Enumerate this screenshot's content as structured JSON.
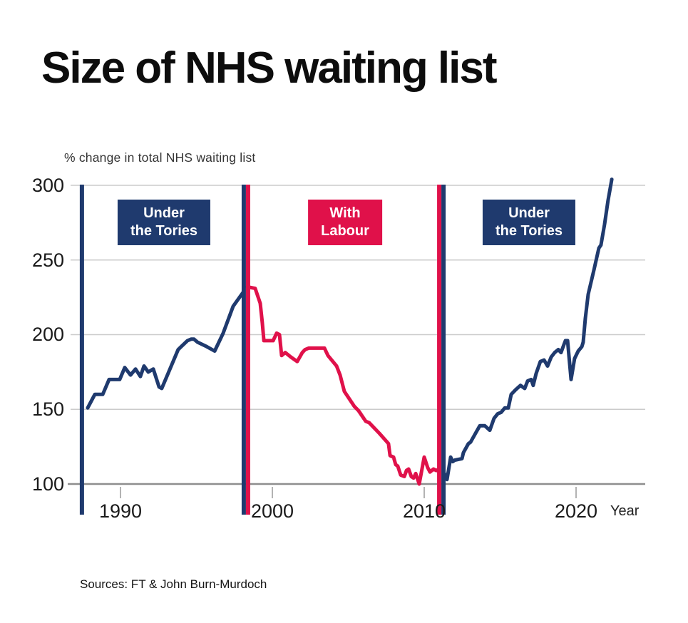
{
  "footer": {
    "source": "Sources: FT & John Burn-Murdoch"
  },
  "colors": {
    "tory_navy": "#1f3a6e",
    "labour_red": "#e0114a",
    "grid": "#cbcbcb",
    "axis": "#8e8e8e"
  },
  "chart_data": {
    "type": "line",
    "title": "Size of NHS waiting list",
    "subtitle": "% change in total NHS waiting list",
    "xlabel": "Year",
    "ylabel": "% change in total NHS waiting list",
    "x_ticks": [
      1990,
      2000,
      2010,
      2020
    ],
    "y_ticks": [
      100,
      150,
      200,
      250,
      300
    ],
    "xlim": [
      1987.4,
      2024.5
    ],
    "ylim": [
      97,
      305
    ],
    "grid": "horizontal",
    "legend_position": "none",
    "markers": [
      {
        "type": "vline",
        "x": 1987.46,
        "color": "#1f3a6e"
      },
      {
        "type": "vline-pair",
        "x": 1998.26,
        "left_color": "#1f3a6e",
        "right_color": "#e0114a"
      },
      {
        "type": "vline-pair",
        "x": 2011.13,
        "left_color": "#e0114a",
        "right_color": "#1f3a6e"
      }
    ],
    "annotations": [
      {
        "lines": [
          "Under",
          "the Tories"
        ],
        "color": "#1f3a6e",
        "x_center": 1992.9,
        "y_center": 275
      },
      {
        "lines": [
          "With",
          "Labour"
        ],
        "color": "#e0114a",
        "x_center": 2004.8,
        "y_center": 275
      },
      {
        "lines": [
          "Under",
          "the Tories"
        ],
        "color": "#1f3a6e",
        "x_center": 2016.9,
        "y_center": 275
      }
    ],
    "series": [
      {
        "name": "Under the Tories (1987-1998)",
        "color": "#1f3a6e",
        "points": [
          [
            1987.84,
            151
          ],
          [
            1988.31,
            160
          ],
          [
            1988.83,
            160
          ],
          [
            1989.25,
            170
          ],
          [
            1989.95,
            170
          ],
          [
            1990.28,
            178
          ],
          [
            1990.66,
            173
          ],
          [
            1990.99,
            177
          ],
          [
            1991.31,
            172
          ],
          [
            1991.55,
            179
          ],
          [
            1991.83,
            175
          ],
          [
            1992.16,
            177
          ],
          [
            1992.54,
            165
          ],
          [
            1992.72,
            164
          ],
          [
            1993.8,
            190
          ],
          [
            1994.41,
            196
          ],
          [
            1994.65,
            197
          ],
          [
            1994.84,
            197
          ],
          [
            1995.07,
            195
          ],
          [
            1995.68,
            192
          ],
          [
            1996.2,
            189
          ],
          [
            1996.76,
            201
          ],
          [
            1997.42,
            219
          ],
          [
            1998.12,
            229
          ]
        ]
      },
      {
        "name": "With Labour (1998-2011)",
        "color": "#e0114a",
        "points": [
          [
            1998.36,
            232
          ],
          [
            1998.87,
            231
          ],
          [
            1999.2,
            221
          ],
          [
            1999.34,
            208
          ],
          [
            1999.44,
            196
          ],
          [
            1999.77,
            196
          ],
          [
            2000.05,
            196
          ],
          [
            2000.28,
            201
          ],
          [
            2000.47,
            200
          ],
          [
            2000.61,
            186
          ],
          [
            2000.85,
            188
          ],
          [
            2001.22,
            185
          ],
          [
            2001.64,
            182
          ],
          [
            2001.97,
            188
          ],
          [
            2002.16,
            190
          ],
          [
            2002.39,
            191
          ],
          [
            2003.43,
            191
          ],
          [
            2003.66,
            186
          ],
          [
            2004.23,
            179
          ],
          [
            2004.46,
            173
          ],
          [
            2004.74,
            162
          ],
          [
            2005.07,
            157
          ],
          [
            2005.4,
            152
          ],
          [
            2005.68,
            149
          ],
          [
            2006.15,
            142
          ],
          [
            2006.38,
            141
          ],
          [
            2007.04,
            134
          ],
          [
            2007.65,
            127
          ],
          [
            2007.75,
            119
          ],
          [
            2007.98,
            118
          ],
          [
            2008.12,
            113
          ],
          [
            2008.26,
            112
          ],
          [
            2008.45,
            106
          ],
          [
            2008.69,
            105
          ],
          [
            2008.83,
            109
          ],
          [
            2008.97,
            110
          ],
          [
            2009.15,
            105
          ],
          [
            2009.3,
            104
          ],
          [
            2009.44,
            107
          ],
          [
            2009.67,
            100
          ],
          [
            2010.0,
            118
          ],
          [
            2010.23,
            111
          ],
          [
            2010.38,
            108
          ],
          [
            2010.61,
            110
          ],
          [
            2010.8,
            109
          ],
          [
            2010.99,
            110
          ]
        ]
      },
      {
        "name": "Under the Tories (2011-2023)",
        "color": "#1f3a6e",
        "points": [
          [
            2011.27,
            108
          ],
          [
            2011.5,
            103
          ],
          [
            2011.74,
            118
          ],
          [
            2011.88,
            115
          ],
          [
            2012.02,
            116
          ],
          [
            2012.49,
            117
          ],
          [
            2012.58,
            121
          ],
          [
            2012.91,
            127
          ],
          [
            2013.05,
            128
          ],
          [
            2013.38,
            134
          ],
          [
            2013.66,
            139
          ],
          [
            2013.99,
            139
          ],
          [
            2014.32,
            136
          ],
          [
            2014.6,
            144
          ],
          [
            2014.84,
            147
          ],
          [
            2015.07,
            148
          ],
          [
            2015.31,
            151
          ],
          [
            2015.54,
            151
          ],
          [
            2015.73,
            160
          ],
          [
            2016.01,
            163
          ],
          [
            2016.34,
            166
          ],
          [
            2016.62,
            164
          ],
          [
            2016.81,
            169
          ],
          [
            2017.04,
            170
          ],
          [
            2017.18,
            166
          ],
          [
            2017.37,
            174
          ],
          [
            2017.65,
            182
          ],
          [
            2017.89,
            183
          ],
          [
            2018.12,
            179
          ],
          [
            2018.36,
            185
          ],
          [
            2018.59,
            188
          ],
          [
            2018.83,
            190
          ],
          [
            2019.01,
            188
          ],
          [
            2019.15,
            192
          ],
          [
            2019.3,
            196
          ],
          [
            2019.44,
            196
          ],
          [
            2019.67,
            170
          ],
          [
            2019.9,
            184
          ],
          [
            2020.14,
            189
          ],
          [
            2020.38,
            192
          ],
          [
            2020.47,
            195
          ],
          [
            2020.61,
            211
          ],
          [
            2020.8,
            227
          ],
          [
            2021.17,
            243
          ],
          [
            2021.5,
            258
          ],
          [
            2021.64,
            260
          ],
          [
            2021.88,
            274
          ],
          [
            2022.11,
            290
          ],
          [
            2022.35,
            304
          ]
        ]
      }
    ]
  }
}
